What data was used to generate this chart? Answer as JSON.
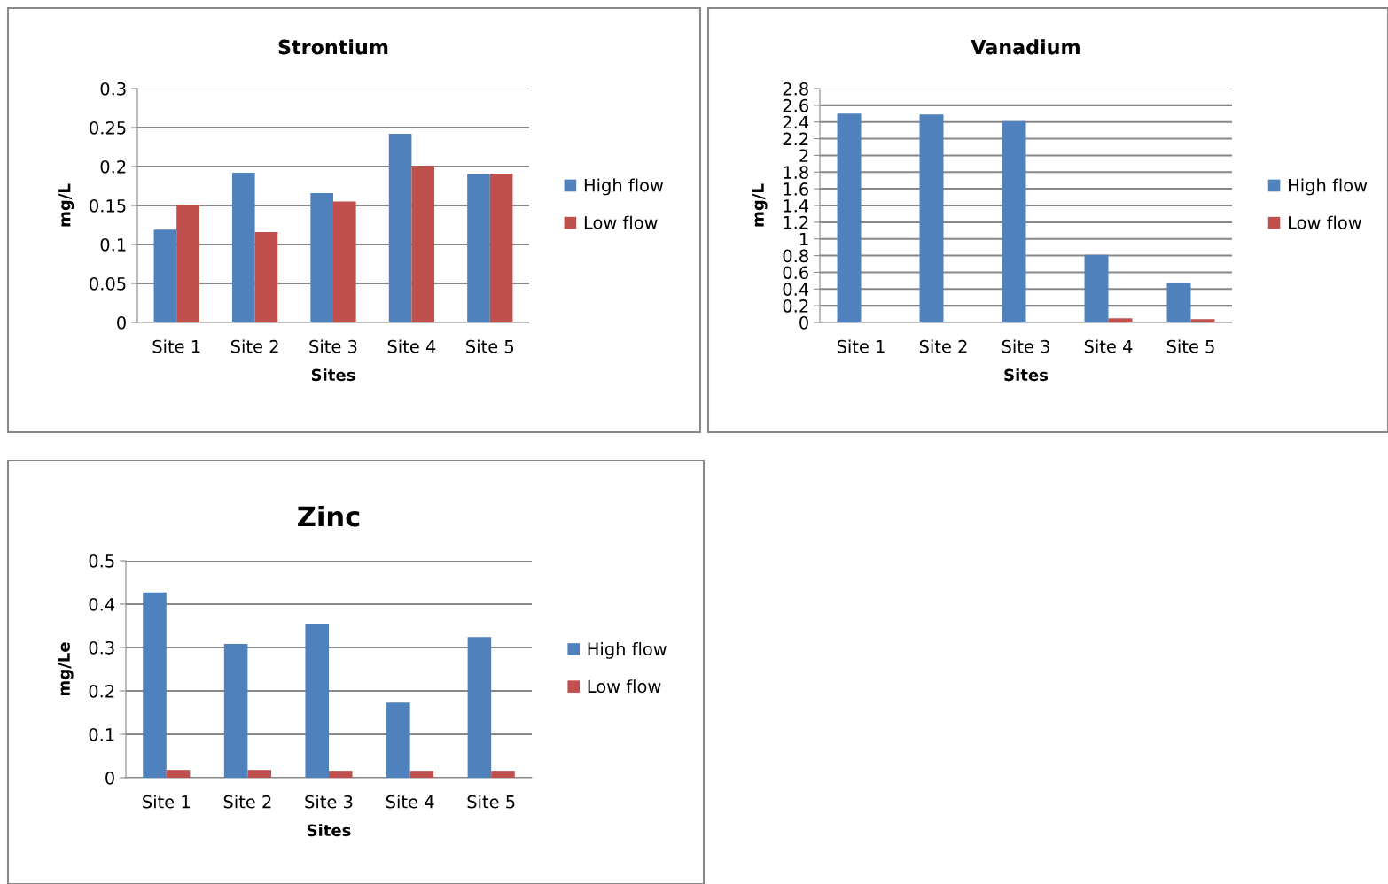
{
  "chart_data": [
    {
      "type": "bar",
      "title": "Strontium",
      "xlabel": "Sites",
      "ylabel": "mg/L",
      "categories": [
        "Site 1",
        "Site 2",
        "Site 3",
        "Site 4",
        "Site 5"
      ],
      "ylim": [
        0,
        0.3
      ],
      "yticks": [
        0,
        0.05,
        0.1,
        0.15,
        0.2,
        0.25,
        0.3
      ],
      "grid": "y",
      "legend": "right",
      "series": [
        {
          "name": "High flow",
          "color": "#4f81bd",
          "values": [
            0.119,
            0.192,
            0.166,
            0.242,
            0.19
          ]
        },
        {
          "name": "Low flow",
          "color": "#c0504d",
          "values": [
            0.151,
            0.116,
            0.155,
            0.201,
            0.191
          ]
        }
      ]
    },
    {
      "type": "bar",
      "title": "Vanadium",
      "xlabel": "Sites",
      "ylabel": "mg/L",
      "categories": [
        "Site 1",
        "Site 2",
        "Site 3",
        "Site 4",
        "Site 5"
      ],
      "ylim": [
        0,
        2.8
      ],
      "yticks": [
        0,
        0.2,
        0.4,
        0.6,
        0.8,
        1,
        1.2,
        1.4,
        1.6,
        1.8,
        2,
        2.2,
        2.4,
        2.6,
        2.8
      ],
      "grid": "y",
      "legend": "right",
      "series": [
        {
          "name": "High flow",
          "color": "#4f81bd",
          "values": [
            2.5,
            2.49,
            2.41,
            0.81,
            0.47
          ]
        },
        {
          "name": "Low flow",
          "color": "#c0504d",
          "values": [
            0,
            0,
            0,
            0.05,
            0.04
          ]
        }
      ]
    },
    {
      "type": "bar",
      "title": "Zinc",
      "xlabel": "Sites",
      "ylabel": "mg/Le",
      "categories": [
        "Site 1",
        "Site 2",
        "Site 3",
        "Site 4",
        "Site 5"
      ],
      "ylim": [
        0,
        0.5
      ],
      "yticks": [
        0,
        0.1,
        0.2,
        0.3,
        0.4,
        0.5
      ],
      "grid": "y",
      "legend": "right",
      "series": [
        {
          "name": "High flow",
          "color": "#4f81bd",
          "values": [
            0.427,
            0.308,
            0.355,
            0.173,
            0.324
          ]
        },
        {
          "name": "Low flow",
          "color": "#c0504d",
          "values": [
            0.018,
            0.018,
            0.016,
            0.016,
            0.016
          ]
        }
      ]
    }
  ]
}
